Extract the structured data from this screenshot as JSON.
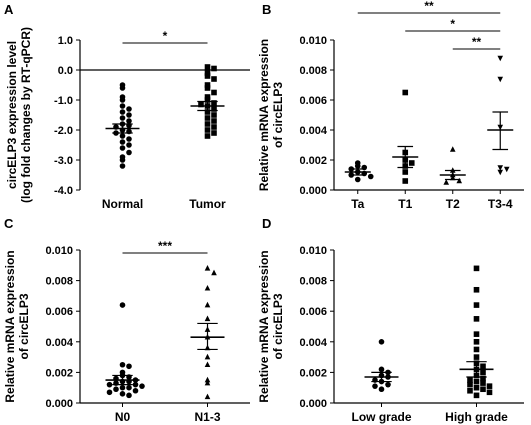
{
  "chart_data": [
    {
      "panel": "A",
      "type": "scatter",
      "ylabel_lines": [
        "circELP3 expression level",
        "(log fold changes by RT-qPCR)"
      ],
      "ylim": [
        -4.0,
        1.0
      ],
      "yticks": [
        "1.0",
        "0.0",
        "-1.0",
        "-2.0",
        "-3.0",
        "-4.0"
      ],
      "ytick_values": [
        1.0,
        0.0,
        -1.0,
        -2.0,
        -3.0,
        -4.0
      ],
      "zero_line": true,
      "categories": [
        "Normal",
        "Tumor"
      ],
      "markers": [
        "circle",
        "square"
      ],
      "groups": [
        {
          "mean": -1.95,
          "sem_low": -2.1,
          "sem_high": -1.8,
          "points": [
            -0.5,
            -0.6,
            -0.9,
            -1.0,
            -1.2,
            -1.3,
            -1.4,
            -1.5,
            -1.6,
            -1.7,
            -1.8,
            -1.85,
            -1.9,
            -2.0,
            -2.05,
            -2.1,
            -2.2,
            -2.3,
            -2.4,
            -2.5,
            -2.6,
            -2.75,
            -2.9,
            -3.0,
            -3.2
          ]
        },
        {
          "mean": -1.2,
          "sem_low": -1.35,
          "sem_high": -1.05,
          "points": [
            0.1,
            0.05,
            -0.1,
            -0.2,
            -0.3,
            -0.5,
            -0.6,
            -0.75,
            -0.9,
            -1.0,
            -1.1,
            -1.15,
            -1.2,
            -1.3,
            -1.4,
            -1.5,
            -1.6,
            -1.7,
            -1.8,
            -1.9,
            -2.0,
            -2.1,
            -2.2
          ]
        }
      ],
      "significance": [
        {
          "from": 0,
          "to": 1,
          "label": "*"
        }
      ]
    },
    {
      "panel": "B",
      "type": "scatter",
      "ylabel_lines": [
        "Relative mRNA expression",
        "of circELP3"
      ],
      "ylim": [
        0,
        0.01
      ],
      "yticks": [
        "0.000",
        "0.002",
        "0.004",
        "0.006",
        "0.008",
        "0.010"
      ],
      "ytick_values": [
        0,
        0.002,
        0.004,
        0.006,
        0.008,
        0.01
      ],
      "categories": [
        "Ta",
        "T1",
        "T2",
        "T3-4"
      ],
      "markers": [
        "circle",
        "square",
        "triangle",
        "triangle-down"
      ],
      "groups": [
        {
          "mean": 0.0012,
          "sem_low": 0.001,
          "sem_high": 0.0014,
          "points": [
            0.0018,
            0.0016,
            0.0015,
            0.0014,
            0.0012,
            0.0011,
            0.001,
            0.0009,
            0.0007
          ]
        },
        {
          "mean": 0.0022,
          "sem_low": 0.0015,
          "sem_high": 0.0029,
          "points": [
            0.0065,
            0.0025,
            0.002,
            0.0018,
            0.0016,
            0.0012,
            0.0006
          ]
        },
        {
          "mean": 0.001,
          "sem_low": 0.0007,
          "sem_high": 0.0013,
          "points": [
            0.0027,
            0.0013,
            0.001,
            0.0008,
            0.0006,
            0.0005
          ]
        },
        {
          "mean": 0.004,
          "sem_low": 0.0027,
          "sem_high": 0.0052,
          "points": [
            0.0088,
            0.0074,
            0.0042,
            0.0015,
            0.0014,
            0.0012
          ]
        }
      ],
      "significance": [
        {
          "from": 0,
          "to": 3,
          "label": "**"
        },
        {
          "from": 1,
          "to": 3,
          "label": "*"
        },
        {
          "from": 2,
          "to": 3,
          "label": "**"
        }
      ]
    },
    {
      "panel": "C",
      "type": "scatter",
      "ylabel_lines": [
        "Relative mRNA expression",
        "of circELP3"
      ],
      "ylim": [
        0,
        0.01
      ],
      "yticks": [
        "0.000",
        "0.002",
        "0.004",
        "0.006",
        "0.008",
        "0.010"
      ],
      "ytick_values": [
        0,
        0.002,
        0.004,
        0.006,
        0.008,
        0.01
      ],
      "categories": [
        "N0",
        "N1-3"
      ],
      "markers": [
        "circle",
        "triangle"
      ],
      "groups": [
        {
          "mean": 0.0015,
          "sem_low": 0.0012,
          "sem_high": 0.0018,
          "points": [
            0.0064,
            0.0025,
            0.0024,
            0.002,
            0.0018,
            0.0017,
            0.0016,
            0.0015,
            0.0014,
            0.0014,
            0.0013,
            0.0012,
            0.0012,
            0.0011,
            0.001,
            0.001,
            0.0009,
            0.0008,
            0.0007,
            0.0006,
            0.0005
          ]
        },
        {
          "mean": 0.0043,
          "sem_low": 0.0035,
          "sem_high": 0.0052,
          "points": [
            0.0088,
            0.0085,
            0.0075,
            0.0064,
            0.0055,
            0.0048,
            0.0043,
            0.0036,
            0.003,
            0.0025,
            0.0015,
            0.0013,
            0.0004
          ]
        }
      ],
      "significance": [
        {
          "from": 0,
          "to": 1,
          "label": "***"
        }
      ]
    },
    {
      "panel": "D",
      "type": "scatter",
      "ylabel_lines": [
        "Relative mRNA expression",
        "of circELP3"
      ],
      "ylim": [
        0,
        0.01
      ],
      "yticks": [
        "0.000",
        "0.002",
        "0.004",
        "0.006",
        "0.008",
        "0.010"
      ],
      "ytick_values": [
        0,
        0.002,
        0.004,
        0.006,
        0.008,
        0.01
      ],
      "categories": [
        "Low grade",
        "High grade"
      ],
      "markers": [
        "circle",
        "square"
      ],
      "groups": [
        {
          "mean": 0.0017,
          "sem_low": 0.0014,
          "sem_high": 0.002,
          "points": [
            0.004,
            0.0022,
            0.002,
            0.0018,
            0.0017,
            0.0015,
            0.0014,
            0.0012,
            0.0011,
            0.0009
          ]
        },
        {
          "mean": 0.0022,
          "sem_low": 0.0017,
          "sem_high": 0.0027,
          "points": [
            0.0088,
            0.0074,
            0.0064,
            0.0055,
            0.0045,
            0.004,
            0.0035,
            0.003,
            0.0026,
            0.0024,
            0.0022,
            0.002,
            0.0018,
            0.0016,
            0.0015,
            0.0014,
            0.0013,
            0.0012,
            0.0011,
            0.001,
            0.0009,
            0.0008,
            0.0007,
            0.0005
          ]
        }
      ],
      "significance": []
    }
  ]
}
